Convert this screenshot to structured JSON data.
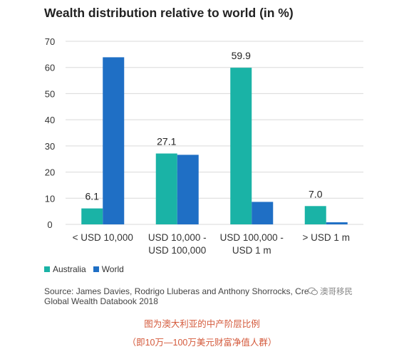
{
  "chart_data": {
    "type": "bar",
    "title": "Wealth distribution relative to world (in %)",
    "categories": [
      [
        "< USD 10,000"
      ],
      [
        "USD 10,000 -",
        "USD 100,000"
      ],
      [
        "USD 100,000 -",
        "USD 1 m"
      ],
      [
        "> USD 1 m"
      ]
    ],
    "series": [
      {
        "name": "Australia",
        "values": [
          6.1,
          27.1,
          59.9,
          7.0
        ],
        "color": "#1ab3a6"
      },
      {
        "name": "World",
        "values": [
          63.9,
          26.6,
          8.6,
          0.8
        ],
        "color": "#1f6fc5"
      }
    ],
    "data_labels": [
      "6.1",
      "27.1",
      "59.9",
      "7.0"
    ],
    "yticks": [
      0,
      10,
      20,
      30,
      40,
      50,
      60,
      70
    ],
    "ylim": [
      0,
      70
    ],
    "grid": true,
    "legend_position": "bottom-left"
  },
  "source_lines": [
    "Source: James Davies, Rodrigo Lluberas and Anthony Shorrocks, Cre",
    "Global Wealth Databook 2018"
  ],
  "watermark": "澳哥移民",
  "caption_line1": "图为澳大利亚的中产阶层比例",
  "caption_line2": "（即10万—100万美元财富净值人群）"
}
